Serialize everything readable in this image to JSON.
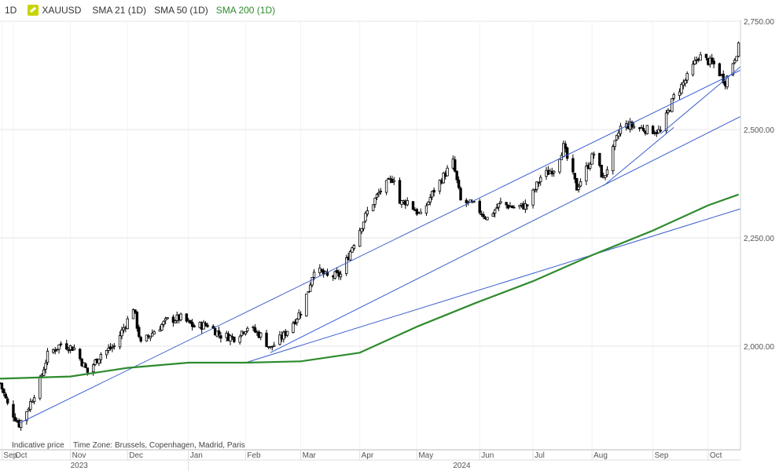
{
  "header": {
    "timeframe": "1D",
    "symbol": "XAUUSD",
    "indicators": [
      "SMA 21 (1D)",
      "SMA 50 (1D)",
      "SMA 200 (1D)"
    ]
  },
  "footer": {
    "note": "Indicative price",
    "timezone": "Time Zone: Brussels, Copenhagen, Madrid, Paris"
  },
  "colors": {
    "candle": "#000000",
    "sma200": "#2e8b2e",
    "trendline": "#3a5fcd",
    "grid": "#e6e6e6",
    "axis_text": "#555555"
  },
  "chart_data": {
    "type": "line",
    "title": "",
    "ylim": [
      1800,
      2760
    ],
    "y_ticks": [
      "2,750.00",
      "2,500.00",
      "2,250.00",
      "2,000.00"
    ],
    "y_tick_values": [
      2750,
      2500,
      2250,
      2000
    ],
    "x_range": [
      "2023-09-25",
      "2024-10-18"
    ],
    "x_month_labels": [
      {
        "label": "Sep",
        "date": "2023-09-26"
      },
      {
        "label": "Oct",
        "date": "2023-10-02"
      },
      {
        "label": "Nov",
        "date": "2023-11-01"
      },
      {
        "label": "Dec",
        "date": "2023-12-01"
      },
      {
        "label": "Jan",
        "date": "2024-01-02"
      },
      {
        "label": "Feb",
        "date": "2024-02-01"
      },
      {
        "label": "Mar",
        "date": "2024-03-01"
      },
      {
        "label": "Apr",
        "date": "2024-04-01"
      },
      {
        "label": "May",
        "date": "2024-05-01"
      },
      {
        "label": "Jun",
        "date": "2024-06-03"
      },
      {
        "label": "Jul",
        "date": "2024-07-01"
      },
      {
        "label": "Aug",
        "date": "2024-08-01"
      },
      {
        "label": "Sep",
        "date": "2024-09-02"
      },
      {
        "label": "Oct",
        "date": "2024-10-01"
      }
    ],
    "x_year_labels": [
      {
        "label": "2023",
        "date": "2023-11-01"
      },
      {
        "label": "2024",
        "date": "2024-05-20"
      }
    ],
    "price_path": [
      [
        "2023-09-25",
        1915
      ],
      [
        "2023-09-29",
        1865
      ],
      [
        "2023-10-05",
        1820
      ],
      [
        "2023-10-10",
        1860
      ],
      [
        "2023-10-16",
        1920
      ],
      [
        "2023-10-20",
        1980
      ],
      [
        "2023-10-27",
        2005
      ],
      [
        "2023-11-03",
        1995
      ],
      [
        "2023-11-10",
        1940
      ],
      [
        "2023-11-17",
        1982
      ],
      [
        "2023-11-24",
        2000
      ],
      [
        "2023-12-01",
        2060
      ],
      [
        "2023-12-04",
        2090
      ],
      [
        "2023-12-08",
        2005
      ],
      [
        "2023-12-15",
        2035
      ],
      [
        "2023-12-22",
        2060
      ],
      [
        "2023-12-29",
        2065
      ],
      [
        "2024-01-05",
        2045
      ],
      [
        "2024-01-12",
        2050
      ],
      [
        "2024-01-19",
        2025
      ],
      [
        "2024-01-26",
        2020
      ],
      [
        "2024-02-02",
        2045
      ],
      [
        "2024-02-09",
        2025
      ],
      [
        "2024-02-14",
        1995
      ],
      [
        "2024-02-21",
        2025
      ],
      [
        "2024-03-01",
        2080
      ],
      [
        "2024-03-05",
        2130
      ],
      [
        "2024-03-08",
        2180
      ],
      [
        "2024-03-15",
        2160
      ],
      [
        "2024-03-22",
        2165
      ],
      [
        "2024-03-28",
        2230
      ],
      [
        "2024-04-05",
        2310
      ],
      [
        "2024-04-12",
        2360
      ],
      [
        "2024-04-19",
        2390
      ],
      [
        "2024-04-22",
        2330
      ],
      [
        "2024-04-26",
        2335
      ],
      [
        "2024-05-03",
        2300
      ],
      [
        "2024-05-10",
        2360
      ],
      [
        "2024-05-20",
        2425
      ],
      [
        "2024-05-24",
        2335
      ],
      [
        "2024-05-31",
        2325
      ],
      [
        "2024-06-07",
        2295
      ],
      [
        "2024-06-14",
        2330
      ],
      [
        "2024-06-21",
        2320
      ],
      [
        "2024-06-28",
        2325
      ],
      [
        "2024-07-05",
        2390
      ],
      [
        "2024-07-12",
        2410
      ],
      [
        "2024-07-17",
        2460
      ],
      [
        "2024-07-24",
        2365
      ],
      [
        "2024-08-02",
        2445
      ],
      [
        "2024-08-07",
        2385
      ],
      [
        "2024-08-16",
        2505
      ],
      [
        "2024-08-20",
        2510
      ],
      [
        "2024-08-30",
        2500
      ],
      [
        "2024-09-06",
        2495
      ],
      [
        "2024-09-13",
        2575
      ],
      [
        "2024-09-20",
        2620
      ],
      [
        "2024-09-26",
        2670
      ],
      [
        "2024-10-04",
        2650
      ],
      [
        "2024-10-10",
        2610
      ],
      [
        "2024-10-17",
        2690
      ]
    ],
    "series": [
      {
        "name": "SMA 200 (1D)",
        "values": [
          [
            "2023-09-25",
            1925
          ],
          [
            "2023-11-01",
            1930
          ],
          [
            "2023-12-01",
            1950
          ],
          [
            "2024-01-02",
            1962
          ],
          [
            "2024-02-01",
            1962
          ],
          [
            "2024-03-01",
            1965
          ],
          [
            "2024-04-01",
            1985
          ],
          [
            "2024-05-01",
            2045
          ],
          [
            "2024-06-01",
            2100
          ],
          [
            "2024-07-01",
            2150
          ],
          [
            "2024-08-01",
            2210
          ],
          [
            "2024-09-01",
            2265
          ],
          [
            "2024-10-01",
            2325
          ],
          [
            "2024-10-17",
            2350
          ]
        ]
      }
    ],
    "trendlines": [
      {
        "from": [
          "2023-10-05",
          1822
        ],
        "to": [
          "2024-10-18",
          2637
        ]
      },
      {
        "from": [
          "2024-02-14",
          1985
        ],
        "to": [
          "2024-10-18",
          2530
        ]
      },
      {
        "from": [
          "2024-02-01",
          1962
        ],
        "to": [
          "2024-10-18",
          2317
        ]
      },
      {
        "from": [
          "2024-08-07",
          2370
        ],
        "to": [
          "2024-09-13",
          2505
        ]
      },
      {
        "from": [
          "2024-09-06",
          2490
        ],
        "to": [
          "2024-10-18",
          2645
        ]
      }
    ]
  }
}
